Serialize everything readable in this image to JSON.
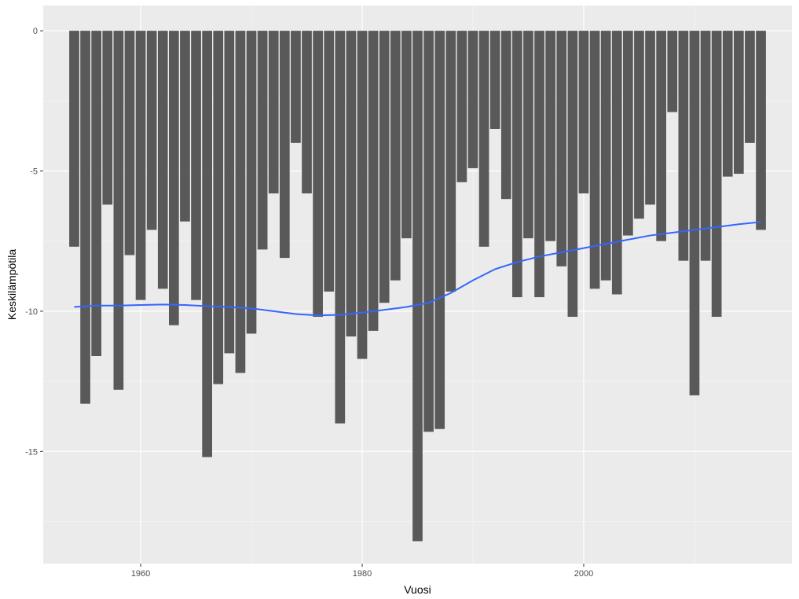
{
  "chart_data": {
    "type": "bar",
    "xlabel": "Vuosi",
    "ylabel": "Keskilämpötila",
    "xlim": [
      1951.2,
      2018.8
    ],
    "ylim": [
      -19.0,
      0.9
    ],
    "x_ticks": [
      1960,
      1980,
      2000
    ],
    "x_tick_labels": [
      "1960",
      "1980",
      "2000"
    ],
    "y_ticks": [
      0,
      -5,
      -10,
      -15
    ],
    "y_tick_labels": [
      "0",
      "-5",
      "-10",
      "-15"
    ],
    "grid": true,
    "legend": "none",
    "colors": {
      "panel_background": "#ebebeb",
      "grid_major": "#ffffff",
      "grid_minor": "#f5f5f5",
      "bar_fill": "#595959",
      "smooth_line": "#3366ff"
    },
    "series": [
      {
        "type": "bar",
        "x": [
          1954,
          1955,
          1956,
          1957,
          1958,
          1959,
          1960,
          1961,
          1962,
          1963,
          1964,
          1965,
          1966,
          1967,
          1968,
          1969,
          1970,
          1971,
          1972,
          1973,
          1974,
          1975,
          1976,
          1977,
          1978,
          1979,
          1980,
          1981,
          1982,
          1983,
          1984,
          1985,
          1986,
          1987,
          1988,
          1989,
          1990,
          1991,
          1992,
          1993,
          1994,
          1995,
          1996,
          1997,
          1998,
          1999,
          2000,
          2001,
          2002,
          2003,
          2004,
          2005,
          2006,
          2007,
          2008,
          2009,
          2010,
          2011,
          2012,
          2013,
          2014,
          2015,
          2016
        ],
        "values": [
          -7.7,
          -13.3,
          -11.6,
          -6.2,
          -12.8,
          -8.0,
          -9.6,
          -7.1,
          -9.2,
          -10.5,
          -6.8,
          -9.6,
          -15.2,
          -12.6,
          -11.5,
          -12.2,
          -10.8,
          -7.8,
          -5.8,
          -8.1,
          -4.0,
          -5.8,
          -10.2,
          -9.3,
          -14.0,
          -10.9,
          -11.7,
          -10.7,
          -9.7,
          -8.9,
          -7.4,
          -18.2,
          -14.3,
          -14.2,
          -9.3,
          -5.4,
          -4.9,
          -7.7,
          -3.5,
          -6.0,
          -9.5,
          -7.4,
          -9.5,
          -7.5,
          -8.4,
          -10.2,
          -5.8,
          -9.2,
          -8.9,
          -9.4,
          -7.3,
          -6.7,
          -6.2,
          -7.5,
          -2.9,
          -8.2,
          -13.0,
          -8.2,
          -10.2,
          -5.2,
          -5.1,
          -4.0,
          -7.1
        ]
      },
      {
        "type": "line",
        "name": "",
        "x": [
          1954,
          1956,
          1958,
          1960,
          1962,
          1964,
          1966,
          1968,
          1970,
          1972,
          1974,
          1976,
          1978,
          1980,
          1982,
          1984,
          1986,
          1988,
          1990,
          1992,
          1994,
          1996,
          1998,
          2000,
          2002,
          2004,
          2006,
          2008,
          2010,
          2012,
          2014,
          2016
        ],
        "values": [
          -9.85,
          -9.8,
          -9.8,
          -9.78,
          -9.76,
          -9.78,
          -9.82,
          -9.85,
          -9.9,
          -10.0,
          -10.1,
          -10.15,
          -10.13,
          -10.05,
          -9.95,
          -9.85,
          -9.7,
          -9.35,
          -8.9,
          -8.5,
          -8.25,
          -8.05,
          -7.9,
          -7.75,
          -7.6,
          -7.45,
          -7.3,
          -7.2,
          -7.1,
          -7.0,
          -6.9,
          -6.82
        ]
      }
    ]
  }
}
